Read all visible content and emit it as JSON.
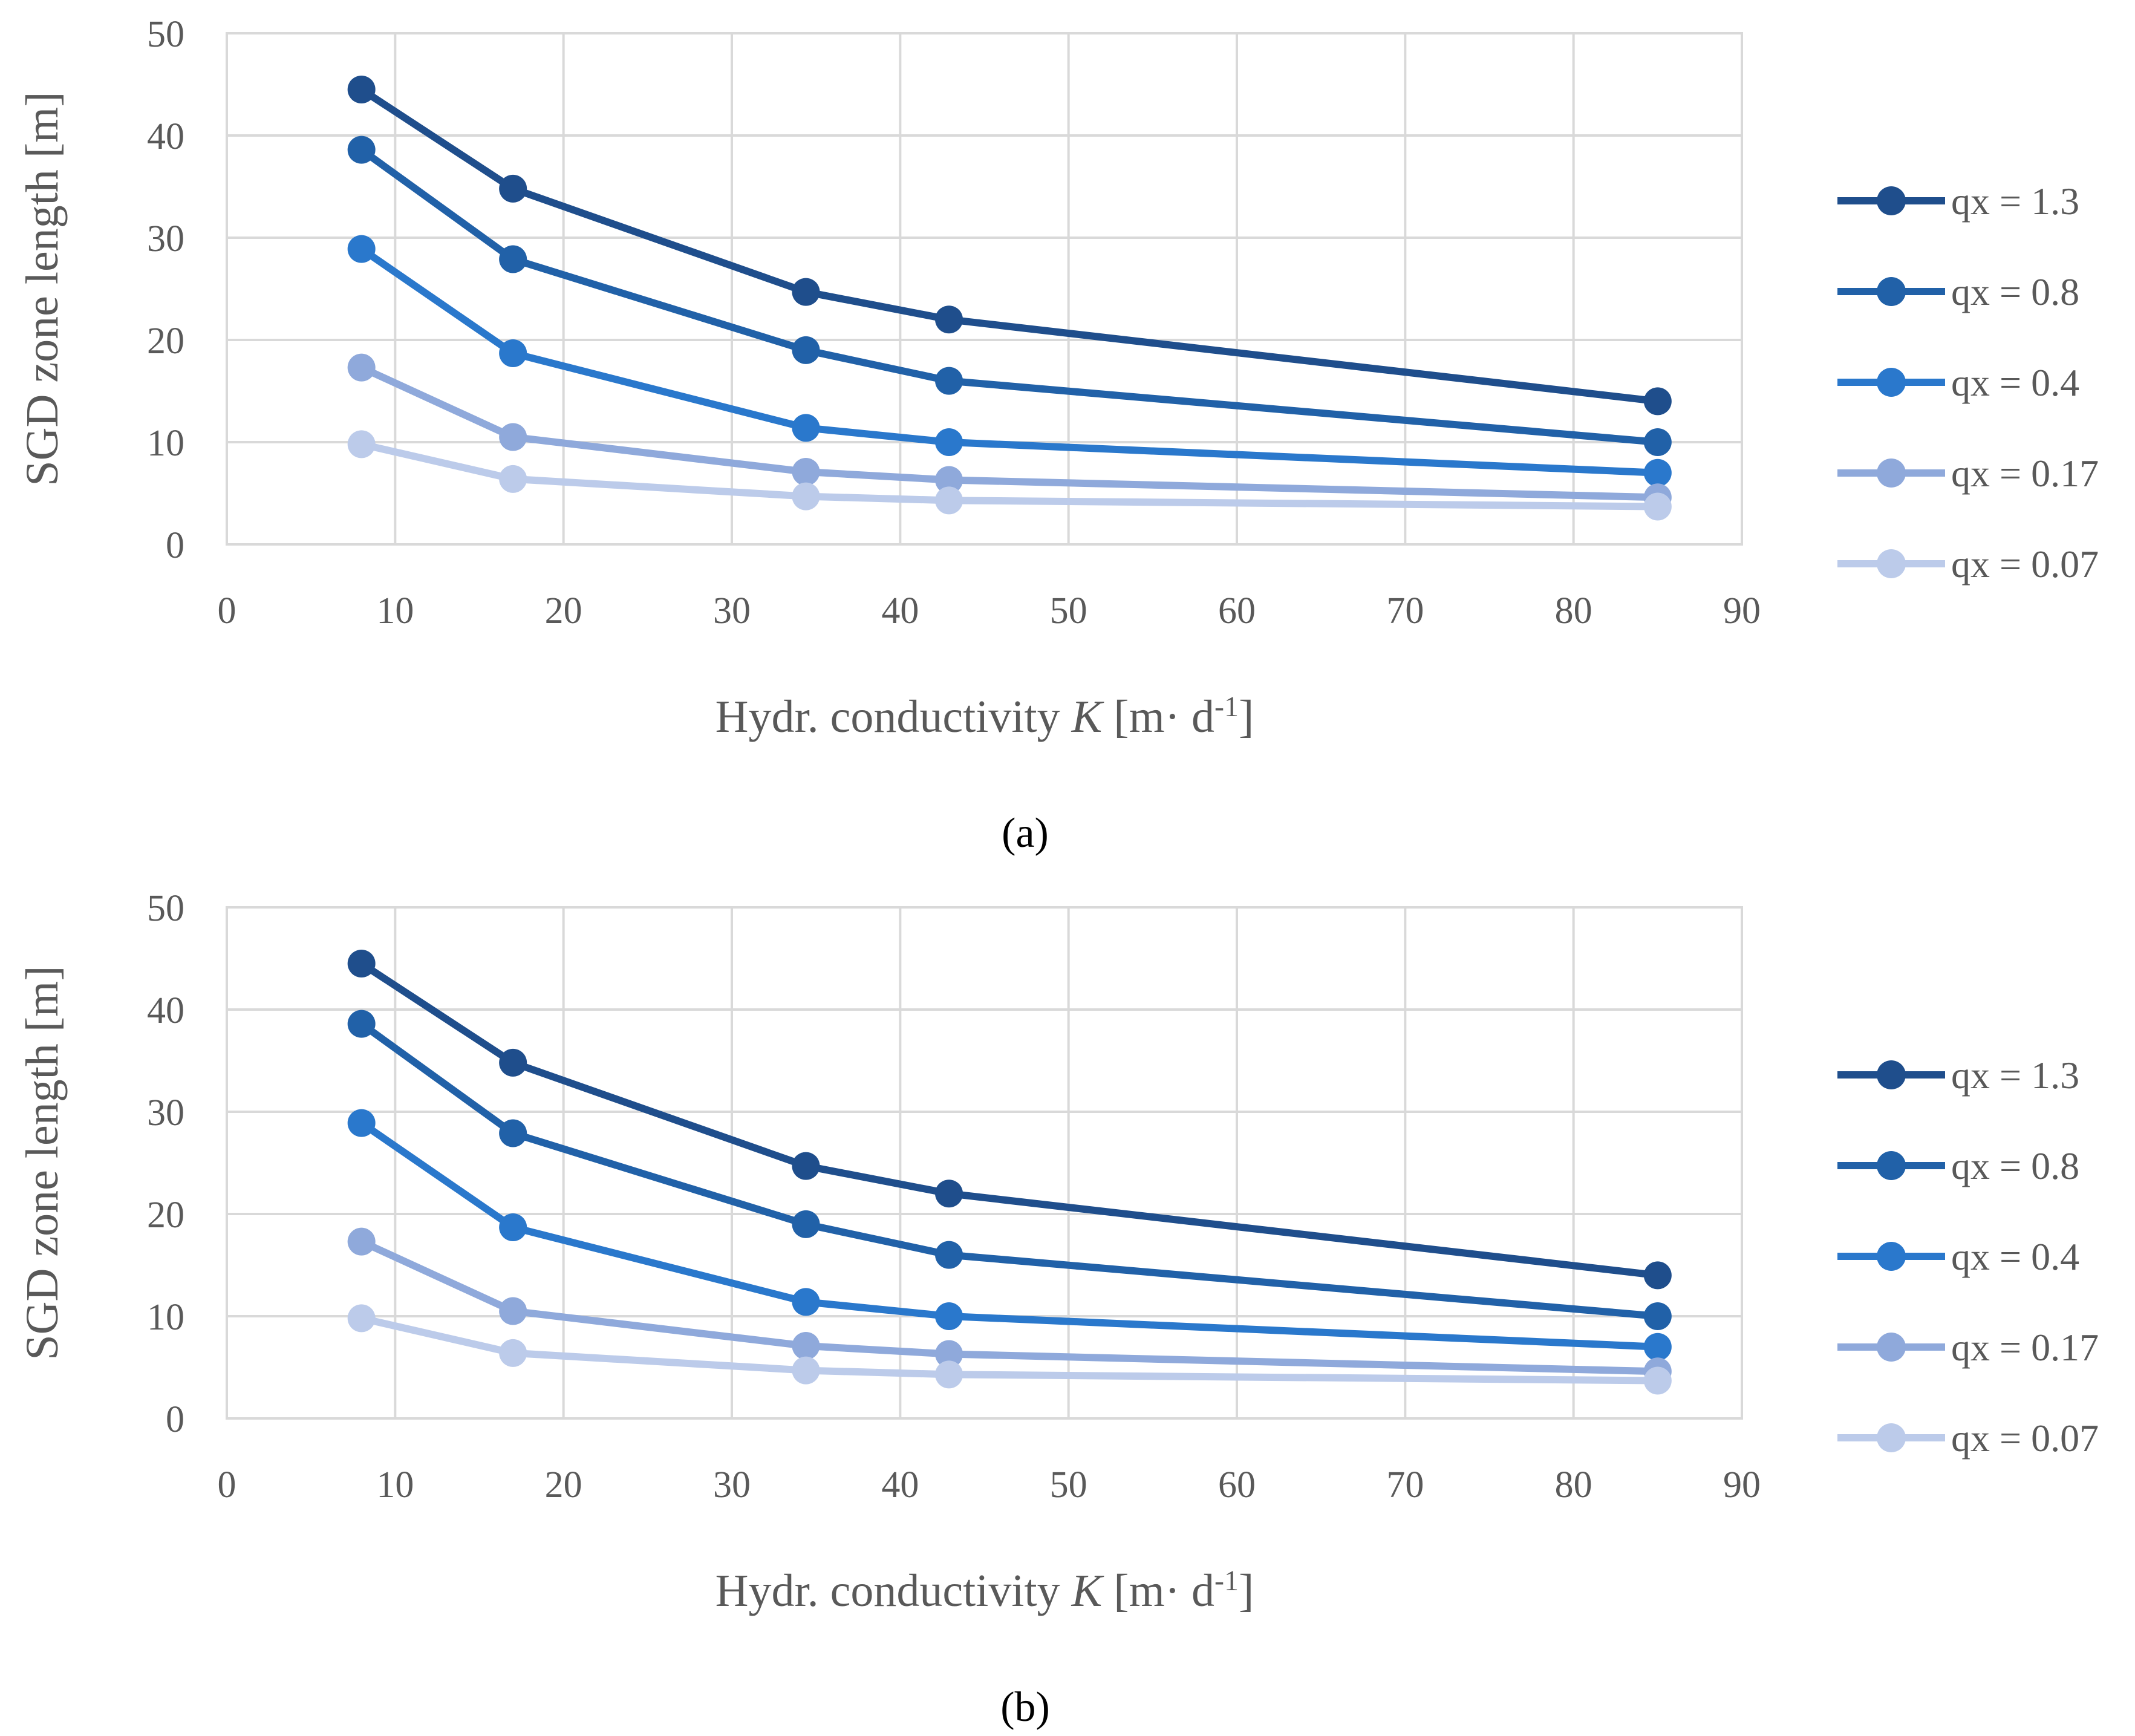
{
  "chart_data": [
    {
      "type": "line",
      "panel": "a",
      "caption": "(a)",
      "xlabel_prefix": "Hydr. conductivity ",
      "xlabel_var": "K",
      "xlabel_unit": " [m· d",
      "xlabel_exp": "-1",
      "xlabel_close": "]",
      "ylabel": "SGD zone length [m]",
      "xlim": [
        0,
        90
      ],
      "ylim": [
        0,
        50
      ],
      "xticks": [
        0,
        10,
        20,
        30,
        40,
        50,
        60,
        70,
        80,
        90
      ],
      "yticks": [
        0,
        10,
        20,
        30,
        40,
        50
      ],
      "grid": true,
      "legend_position": "right",
      "x": [
        8,
        17,
        34.4,
        42.9,
        85
      ],
      "series": [
        {
          "name": "qx = 1.3",
          "color": "#1f4e8c",
          "values": [
            44.5,
            34.8,
            24.7,
            22.0,
            14.0
          ]
        },
        {
          "name": "qx = 0.8",
          "color": "#2161a8",
          "values": [
            38.6,
            27.9,
            19.0,
            16.0,
            10.0
          ]
        },
        {
          "name": "qx = 0.4",
          "color": "#2a78cc",
          "values": [
            28.9,
            18.7,
            11.4,
            10.0,
            7.0
          ]
        },
        {
          "name": "qx = 0.17",
          "color": "#8fa9db",
          "values": [
            17.3,
            10.5,
            7.1,
            6.3,
            4.6
          ]
        },
        {
          "name": "qx = 0.07",
          "color": "#bccbea",
          "values": [
            9.8,
            6.4,
            4.7,
            4.3,
            3.7
          ]
        }
      ]
    },
    {
      "type": "line",
      "panel": "b",
      "caption": "(b)",
      "xlabel_prefix": "Hydr. conductivity ",
      "xlabel_var": "K",
      "xlabel_unit": " [m· d",
      "xlabel_exp": "-1",
      "xlabel_close": "]",
      "ylabel": "SGD zone length [m]",
      "xlim": [
        0,
        90
      ],
      "ylim": [
        0,
        50
      ],
      "xticks": [
        0,
        10,
        20,
        30,
        40,
        50,
        60,
        70,
        80,
        90
      ],
      "yticks": [
        0,
        10,
        20,
        30,
        40,
        50
      ],
      "grid": true,
      "legend_position": "right",
      "x": [
        8,
        17,
        34.4,
        42.9,
        85
      ],
      "series": [
        {
          "name": "qx = 1.3",
          "color": "#1f4e8c",
          "values": [
            44.5,
            34.8,
            24.7,
            22.0,
            14.0
          ]
        },
        {
          "name": "qx = 0.8",
          "color": "#2161a8",
          "values": [
            38.6,
            27.9,
            19.0,
            16.0,
            10.0
          ]
        },
        {
          "name": "qx = 0.4",
          "color": "#2a78cc",
          "values": [
            28.9,
            18.7,
            11.4,
            10.0,
            7.0
          ]
        },
        {
          "name": "qx = 0.17",
          "color": "#8fa9db",
          "values": [
            17.3,
            10.5,
            7.1,
            6.3,
            4.6
          ]
        },
        {
          "name": "qx = 0.07",
          "color": "#bccbea",
          "values": [
            9.8,
            6.4,
            4.7,
            4.3,
            3.7
          ]
        }
      ]
    }
  ]
}
